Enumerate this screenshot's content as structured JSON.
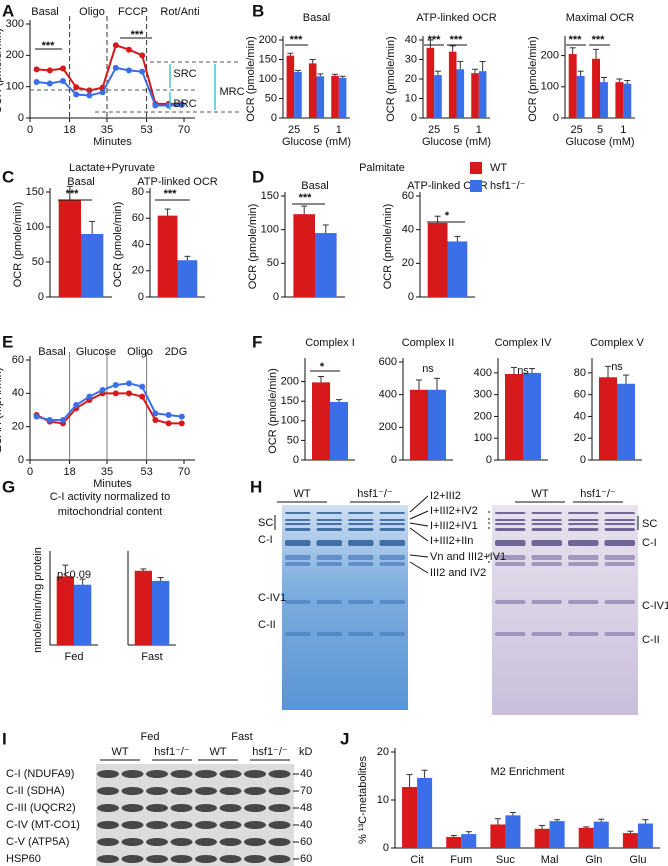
{
  "chart_data": [
    {
      "type": "line",
      "panel": "A",
      "x": [
        3,
        9,
        15,
        21,
        27,
        33,
        39,
        45,
        51,
        57,
        63,
        69
      ],
      "xlim": [
        0,
        75
      ],
      "xticks": [
        0,
        18,
        35,
        53,
        70
      ],
      "ylim": [
        0,
        300
      ],
      "yticks": [
        0,
        100,
        200,
        300
      ],
      "x_label": "Minutes",
      "y_label": "OCR (pmole/min)",
      "phases": [
        "Basal",
        "Oligo",
        "FCCP",
        "Rot/Anti"
      ],
      "annotations": [
        "***",
        "***",
        "SRC",
        "BRC",
        "MRC"
      ],
      "series": [
        {
          "name": "WT",
          "color": "#d7191c",
          "values": [
            155,
            152,
            158,
            98,
            88,
            97,
            232,
            218,
            200,
            45,
            45,
            44
          ]
        },
        {
          "name": "hsf1⁻/⁻",
          "color": "#3a6fe8",
          "values": [
            115,
            110,
            118,
            75,
            72,
            82,
            160,
            152,
            148,
            40,
            40,
            42
          ]
        }
      ]
    },
    {
      "type": "bar",
      "panel": "B",
      "title": "Basal",
      "categories": [
        "25",
        "5",
        "1"
      ],
      "x_label": "Glucose (mM)",
      "y_label": "OCR (pmole/min)",
      "ylim": [
        0,
        200
      ],
      "yticks": [
        0,
        50,
        100,
        150,
        200
      ],
      "annotations": [
        "***"
      ],
      "series": [
        {
          "name": "WT",
          "color": "#d7191c",
          "values": [
            160,
            140,
            108
          ],
          "errors": [
            6,
            10,
            4
          ]
        },
        {
          "name": "hsf1⁻/⁻",
          "color": "#3a6fe8",
          "values": [
            118,
            107,
            103
          ],
          "errors": [
            4,
            6,
            4
          ]
        }
      ]
    },
    {
      "type": "bar",
      "title": "ATP-linked OCR",
      "categories": [
        "25",
        "5",
        "1"
      ],
      "x_label": "Glucose (mM)",
      "y_label": "OCR (pmole/min)",
      "ylim": [
        0,
        40
      ],
      "yticks": [
        0,
        10,
        20,
        30,
        40
      ],
      "annotations": [
        "***",
        "***"
      ],
      "series": [
        {
          "name": "WT",
          "color": "#d7191c",
          "values": [
            36,
            34,
            23
          ],
          "errors": [
            4,
            3,
            2
          ]
        },
        {
          "name": "hsf1⁻/⁻",
          "color": "#3a6fe8",
          "values": [
            22,
            25,
            24
          ],
          "errors": [
            2,
            4,
            5
          ]
        }
      ]
    },
    {
      "type": "bar",
      "title": "Maximal OCR",
      "categories": [
        "25",
        "5",
        "1"
      ],
      "x_label": "Glucose (mM)",
      "y_label": "OCR (pmole/min)",
      "ylim": [
        0,
        250
      ],
      "yticks": [
        0,
        100,
        200
      ],
      "annotations": [
        "***",
        "***"
      ],
      "series": [
        {
          "name": "WT",
          "color": "#d7191c",
          "values": [
            205,
            190,
            115
          ],
          "errors": [
            20,
            30,
            10
          ]
        },
        {
          "name": "hsf1⁻/⁻",
          "color": "#3a6fe8",
          "values": [
            135,
            115,
            110
          ],
          "errors": [
            15,
            15,
            10
          ]
        }
      ]
    },
    {
      "type": "bar",
      "panel": "C",
      "group_title": "Lactate+Pyruvate",
      "title": "Basal",
      "y_label": "OCR (pmole/min)",
      "ylim": [
        0,
        150
      ],
      "yticks": [
        0,
        50,
        100,
        150
      ],
      "annotations": [
        "***"
      ],
      "series": [
        {
          "name": "WT",
          "color": "#d7191c",
          "values": [
            138
          ],
          "errors": [
            20
          ]
        },
        {
          "name": "hsf1⁻/⁻",
          "color": "#3a6fe8",
          "values": [
            90
          ],
          "errors": [
            18
          ]
        }
      ]
    },
    {
      "type": "bar",
      "title": "ATP-linked OCR",
      "y_label": "OCR (pmole/min)",
      "ylim": [
        0,
        80
      ],
      "yticks": [
        0,
        20,
        40,
        60,
        80
      ],
      "annotations": [
        "***"
      ],
      "series": [
        {
          "name": "WT",
          "color": "#d7191c",
          "values": [
            62
          ],
          "errors": [
            5
          ]
        },
        {
          "name": "hsf1⁻/⁻",
          "color": "#3a6fe8",
          "values": [
            28
          ],
          "errors": [
            3
          ]
        }
      ]
    },
    {
      "type": "bar",
      "panel": "D",
      "group_title": "Palmitate",
      "title": "Basal",
      "y_label": "OCR (pmole/min)",
      "ylim": [
        0,
        150
      ],
      "yticks": [
        0,
        50,
        100,
        150
      ],
      "annotations": [
        "***"
      ],
      "series": [
        {
          "name": "WT",
          "color": "#d7191c",
          "values": [
            123
          ],
          "errors": [
            12
          ]
        },
        {
          "name": "hsf1⁻/⁻",
          "color": "#3a6fe8",
          "values": [
            95
          ],
          "errors": [
            12
          ]
        }
      ]
    },
    {
      "type": "bar",
      "title": "ATP-linked OCR",
      "y_label": "OCR (pmole/min)",
      "ylim": [
        0,
        60
      ],
      "yticks": [
        0,
        20,
        40,
        60
      ],
      "annotations": [
        "*"
      ],
      "legend": "right",
      "series": [
        {
          "name": "WT",
          "color": "#d7191c",
          "values": [
            44
          ],
          "errors": [
            4
          ]
        },
        {
          "name": "hsf1⁻/⁻",
          "color": "#3a6fe8",
          "values": [
            33
          ],
          "errors": [
            3
          ]
        }
      ]
    },
    {
      "type": "line",
      "panel": "E",
      "x": [
        3,
        9,
        15,
        21,
        27,
        33,
        39,
        45,
        51,
        57,
        63,
        69
      ],
      "xlim": [
        0,
        75
      ],
      "xticks": [
        0,
        18,
        35,
        53,
        70
      ],
      "ylim": [
        0,
        60
      ],
      "yticks": [
        0,
        20,
        40,
        60
      ],
      "x_label": "Minutes",
      "y_label": "ECAR (mpH/min)",
      "phases": [
        "Basal",
        "Glucose",
        "Oligo",
        "2DG"
      ],
      "series": [
        {
          "name": "WT",
          "color": "#d7191c",
          "values": [
            27,
            23,
            22,
            31,
            36,
            40,
            40,
            40,
            38,
            24,
            22,
            22
          ]
        },
        {
          "name": "hsf1⁻/⁻",
          "color": "#3a6fe8",
          "values": [
            26,
            24,
            24,
            33,
            38,
            42,
            45,
            46,
            44,
            28,
            27,
            26
          ]
        }
      ]
    },
    {
      "type": "bar",
      "panel": "F",
      "title": "Complex I",
      "y_label": "OCR (pmole/min)",
      "ylim": [
        0,
        250
      ],
      "yticks": [
        0,
        50,
        100,
        150,
        200
      ],
      "annotations": [
        "*"
      ],
      "series": [
        {
          "name": "WT",
          "color": "#d7191c",
          "values": [
            198
          ],
          "errors": [
            15
          ]
        },
        {
          "name": "hsf1⁻/⁻",
          "color": "#3a6fe8",
          "values": [
            148
          ],
          "errors": [
            6
          ]
        }
      ]
    },
    {
      "type": "bar",
      "title": "Complex II",
      "ylim": [
        0,
        600
      ],
      "yticks": [
        0,
        200,
        400,
        600
      ],
      "annotations": [
        "ns"
      ],
      "series": [
        {
          "name": "WT",
          "color": "#d7191c",
          "values": [
            430
          ],
          "errors": [
            60
          ]
        },
        {
          "name": "hsf1⁻/⁻",
          "color": "#3a6fe8",
          "values": [
            430
          ],
          "errors": [
            70
          ]
        }
      ]
    },
    {
      "type": "bar",
      "title": "Complex IV",
      "ylim": [
        0,
        450
      ],
      "yticks": [
        0,
        100,
        200,
        300,
        400
      ],
      "annotations": [
        "ns"
      ],
      "series": [
        {
          "name": "WT",
          "color": "#d7191c",
          "values": [
            395
          ],
          "errors": [
            30
          ]
        },
        {
          "name": "hsf1⁻/⁻",
          "color": "#3a6fe8",
          "values": [
            400
          ],
          "errors": [
            20
          ]
        }
      ]
    },
    {
      "type": "bar",
      "title": "Complex V",
      "ylim": [
        0,
        90
      ],
      "yticks": [
        0,
        20,
        40,
        60,
        80
      ],
      "annotations": [
        "ns"
      ],
      "series": [
        {
          "name": "WT",
          "color": "#d7191c",
          "values": [
            76
          ],
          "errors": [
            10
          ]
        },
        {
          "name": "hsf1⁻/⁻",
          "color": "#3a6fe8",
          "values": [
            70
          ],
          "errors": [
            8
          ]
        }
      ]
    },
    {
      "type": "bar",
      "panel": "G",
      "group_title": [
        "C-I activity normalized to",
        "mitochondrial content"
      ],
      "categories": [
        "Fed"
      ],
      "y_label": "nmole/min/mg protein",
      "ylim": [
        0,
        400
      ],
      "annotations": [
        "p<0.09"
      ],
      "series": [
        {
          "name": "WT",
          "color": "#d7191c",
          "values": [
            305
          ],
          "errors": [
            50
          ]
        },
        {
          "name": "hsf1⁻/⁻",
          "color": "#3a6fe8",
          "values": [
            268
          ],
          "errors": [
            25
          ]
        }
      ]
    },
    {
      "type": "bar",
      "categories": [
        "Fast"
      ],
      "ylim": [
        0,
        400
      ],
      "series": [
        {
          "name": "WT",
          "color": "#d7191c",
          "values": [
            330
          ],
          "errors": [
            8
          ]
        },
        {
          "name": "hsf1⁻/⁻",
          "color": "#3a6fe8",
          "values": [
            285
          ],
          "errors": [
            15
          ]
        }
      ]
    },
    {
      "type": "bar",
      "panel": "J",
      "title": "M2 Enrichment",
      "categories": [
        "Cit",
        "Fum",
        "Suc",
        "Mal",
        "Gln",
        "Glu"
      ],
      "y_label": "% ¹³C-metabolites",
      "ylim": [
        0,
        20
      ],
      "yticks": [
        0,
        10,
        20
      ],
      "series": [
        {
          "name": "WT",
          "color": "#d7191c",
          "values": [
            12.7,
            2.3,
            4.9,
            4.0,
            4.2,
            3.1
          ],
          "errors": [
            2.6,
            0.3,
            1.2,
            0.7,
            0.2,
            0.4
          ]
        },
        {
          "name": "hsf1⁻/⁻",
          "color": "#3a6fe8",
          "values": [
            14.6,
            2.9,
            6.8,
            5.6,
            5.5,
            5.1
          ],
          "errors": [
            1.6,
            0.5,
            0.6,
            0.3,
            0.5,
            0.8
          ]
        }
      ]
    }
  ],
  "gels": {
    "panel": "H",
    "left_lanes": [
      "WT",
      "hsf1⁻/⁻"
    ],
    "right_lanes": [
      "WT",
      "hsf1⁻/⁻"
    ],
    "left_labels": [
      "SC",
      "C-I",
      "C-IV1",
      "C-II"
    ],
    "right_labels": [
      "SC",
      "C-I",
      "C-IV1",
      "C-II"
    ],
    "bands": [
      "I2+III2",
      "I+III2+IV2",
      "I+III2+IV1",
      "I+III2+IIn",
      "Vn and III2+IV1",
      "III2 and IV2"
    ]
  },
  "blot": {
    "panel": "I",
    "conditions": [
      "Fed",
      "Fast"
    ],
    "lanes": [
      "WT",
      "hsf1⁻/⁻",
      "WT",
      "hsf1⁻/⁻"
    ],
    "unit": "kD",
    "rows": [
      {
        "name": "C-I (NDUFA9)",
        "kd": 40
      },
      {
        "name": "C-II (SDHA)",
        "kd": 70
      },
      {
        "name": "C-III (UQCR2)",
        "kd": 48
      },
      {
        "name": "C-IV (MT-CO1)",
        "kd": 40
      },
      {
        "name": "C-V (ATP5A)",
        "kd": 60
      },
      {
        "name": "HSP60",
        "kd": 60
      }
    ]
  }
}
